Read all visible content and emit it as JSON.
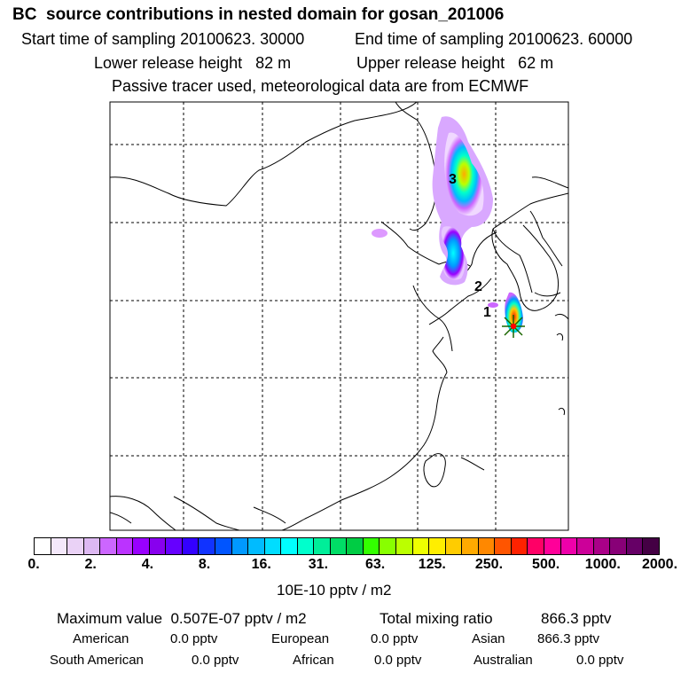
{
  "title": "BC  source contributions in nested domain for gosan_201006",
  "header": {
    "start_label": "Start time of sampling 20100623. 30000",
    "end_label": "End time of sampling 20100623. 60000",
    "lower_label": "Lower release height   82 m",
    "upper_label": "Upper release height   62 m",
    "tracer_note": "Passive tracer used, meteorological data are from ECMWF"
  },
  "map": {
    "region_labels": [
      "1",
      "2",
      "3"
    ],
    "marker": "release-site-star",
    "colors": {
      "coast": "#000000",
      "grid": "#000000"
    }
  },
  "colorbar": {
    "ticks": [
      "0.",
      "2.",
      "4.",
      "8.",
      "16.",
      "31.",
      "63.",
      "125.",
      "250.",
      "500.",
      "1000.",
      "2000."
    ],
    "colors": [
      "#ffffff",
      "#f4e8fb",
      "#ead2f6",
      "#ddb8f2",
      "#cc66ff",
      "#bb33ff",
      "#9900ff",
      "#8800ee",
      "#6600ff",
      "#3300ff",
      "#1133ff",
      "#0055ff",
      "#0099ff",
      "#00bbff",
      "#00ddff",
      "#00ffff",
      "#00ffcc",
      "#00ee99",
      "#00dd66",
      "#00cc44",
      "#33ff00",
      "#88ff00",
      "#bbff00",
      "#eeff00",
      "#ffee00",
      "#ffcc00",
      "#ffaa00",
      "#ff8800",
      "#ff5500",
      "#ff2200",
      "#ff0066",
      "#ff0099",
      "#ee00aa",
      "#cc0099",
      "#aa0088",
      "#880077",
      "#660066",
      "#440044"
    ],
    "unit": "10E-10 pptv / m2"
  },
  "stats": {
    "max_label": "Maximum value  0.507E-07 pptv / m2",
    "total_label": "Total mixing ratio",
    "total_value": "866.3 pptv",
    "rows": [
      [
        {
          "name": "American",
          "value": "0.0 pptv"
        },
        {
          "name": "European",
          "value": "0.0 pptv"
        },
        {
          "name": "Asian",
          "value": "866.3 pptv"
        }
      ],
      [
        {
          "name": "South American",
          "value": "0.0 pptv"
        },
        {
          "name": "African",
          "value": "0.0 pptv"
        },
        {
          "name": "Australian",
          "value": "0.0 pptv"
        }
      ]
    ]
  }
}
